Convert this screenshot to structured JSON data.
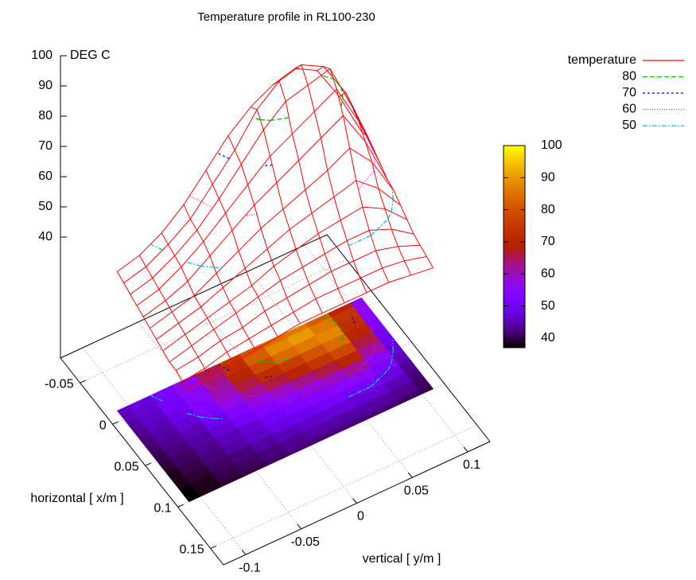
{
  "chart_data": {
    "type": "surface3d",
    "title": "Temperature profile in RL100-230",
    "x_label": "horizontal [ x/m ]",
    "y_label": "vertical [ y/m ]",
    "z_label": "DEG C",
    "xlim": [
      -0.08,
      0.17
    ],
    "ylim": [
      -0.12,
      0.12
    ],
    "zlim": [
      0,
      100
    ],
    "xticks": [
      -0.05,
      0,
      0.05,
      0.1,
      0.15
    ],
    "yticks": [
      -0.1,
      -0.05,
      0,
      0.05,
      0.1
    ],
    "zticks": [
      40,
      50,
      60,
      70,
      80,
      90,
      100
    ],
    "cblim": [
      37,
      100
    ],
    "cbticks": [
      40,
      50,
      60,
      70,
      80,
      90,
      100
    ],
    "grid": true,
    "legend": "top-right",
    "x": [
      -0.01,
      0,
      0.01,
      0.02,
      0.03,
      0.04,
      0.05,
      0.06,
      0.07,
      0.08,
      0.09,
      0.1
    ],
    "y": [
      -0.11,
      -0.09,
      -0.07,
      -0.05,
      -0.03,
      -0.01,
      0.01,
      0.03,
      0.05,
      0.07,
      0.09,
      0.11
    ],
    "z": [
      [
        46,
        48,
        52,
        58,
        66,
        74,
        80,
        84,
        86,
        82,
        70,
        55
      ],
      [
        45,
        47,
        51,
        56,
        64,
        72,
        82,
        88,
        90,
        86,
        74,
        56
      ],
      [
        44,
        46,
        50,
        55,
        62,
        70,
        78,
        84,
        86,
        88,
        72,
        54
      ],
      [
        43,
        45,
        49,
        54,
        60,
        66,
        72,
        76,
        80,
        84,
        70,
        52
      ],
      [
        42,
        44,
        47,
        52,
        57,
        62,
        66,
        70,
        74,
        78,
        66,
        50
      ],
      [
        41,
        43,
        45,
        49,
        53,
        57,
        60,
        63,
        66,
        70,
        62,
        49
      ],
      [
        40,
        42,
        44,
        47,
        50,
        53,
        56,
        58,
        60,
        62,
        56,
        47
      ],
      [
        39,
        41,
        43,
        45,
        47,
        50,
        52,
        54,
        55,
        56,
        52,
        45
      ],
      [
        38,
        40,
        42,
        44,
        46,
        48,
        49,
        50,
        51,
        51,
        48,
        43
      ],
      [
        38,
        39,
        41,
        42,
        44,
        45,
        46,
        47,
        47,
        47,
        45,
        42
      ],
      [
        37,
        38,
        40,
        41,
        42,
        43,
        44,
        44,
        44,
        44,
        43,
        41
      ],
      [
        37,
        38,
        39,
        40,
        41,
        42,
        42,
        42,
        42,
        42,
        41,
        40
      ]
    ],
    "series": [
      {
        "name": "temperature",
        "color": "#ff0000"
      },
      {
        "name": "80",
        "level": 80,
        "color": "#00c000"
      },
      {
        "name": "70",
        "level": 70,
        "color": "#0000ff"
      },
      {
        "name": "60",
        "level": 60,
        "color": "#ff00ff"
      },
      {
        "name": "50",
        "level": 50,
        "color": "#00c8c8"
      }
    ]
  }
}
